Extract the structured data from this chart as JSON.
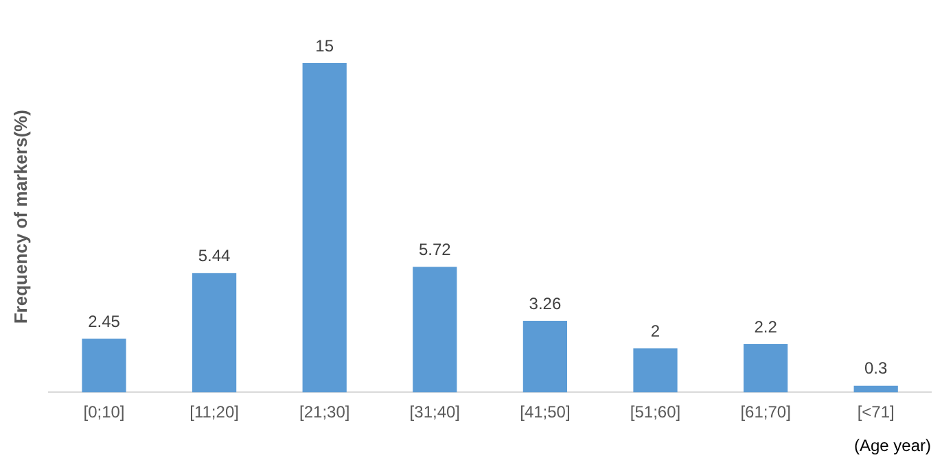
{
  "chart_data": {
    "type": "bar",
    "ylabel": "Frequency of markers(%)",
    "xlabel": "(Age year)",
    "categories": [
      "[0;10]",
      "[11;20]",
      "[21;30]",
      "[31;40]",
      "[41;50]",
      "[51;60]",
      "[61;70]",
      "[<71]"
    ],
    "values": [
      2.45,
      5.44,
      15,
      5.72,
      3.26,
      2,
      2.2,
      0.3
    ],
    "color": "#5b9bd5",
    "data_labels": true,
    "grid": false,
    "legend": false,
    "tick_labels": "x"
  }
}
